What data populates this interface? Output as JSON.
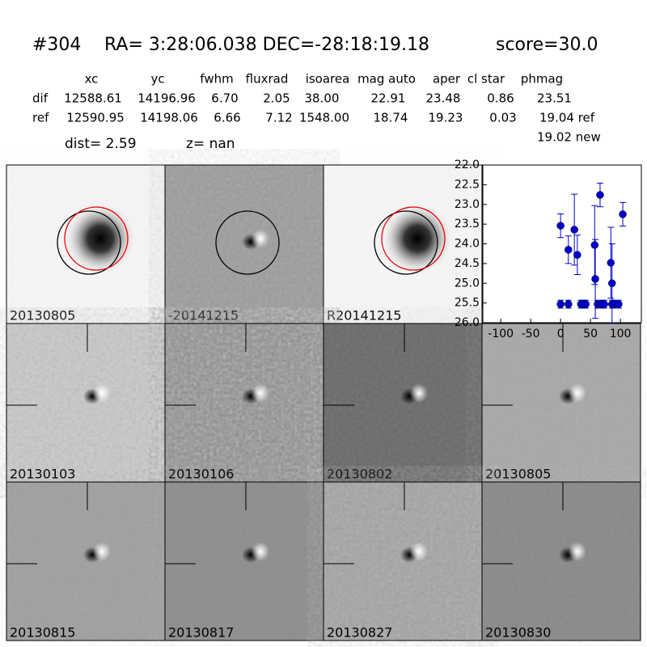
{
  "header": {
    "id": "#304",
    "coords": "RA= 3:28:06.038 DEC=-28:18:19.18",
    "score": "score=30.0"
  },
  "table": {
    "columns": [
      "xc",
      "yc",
      "fwhm",
      "fluxrad",
      "isoarea",
      "mag auto",
      "aper",
      "cl star",
      "phmag"
    ],
    "rows": [
      [
        "dif",
        "12588.61",
        "14196.96",
        "6.70",
        "2.05",
        "38.00",
        "22.91",
        "23.48",
        "0.86",
        "23.51"
      ],
      [
        "ref",
        "12590.95",
        "14198.06",
        "6.66",
        "7.12",
        "1548.00",
        "18.74",
        "19.23",
        "0.03",
        "19.04 ref"
      ]
    ],
    "extra": "19.02 new"
  },
  "dist": "dist=  2.59",
  "z": "z=   nan",
  "stamps": [
    {
      "label": "20130805"
    },
    {
      "label": "-20141215"
    },
    {
      "label": "R20141215"
    },
    {
      "label": "20130103"
    },
    {
      "label": "20130106"
    },
    {
      "label": "20130802"
    },
    {
      "label": "20130805",
      "color": "#ff0000"
    },
    {
      "label": "20130815"
    },
    {
      "label": "20130817"
    },
    {
      "label": "20130827"
    },
    {
      "label": "20130830"
    }
  ],
  "chart_data": {
    "type": "scatter",
    "color": "#0000cc",
    "x": [
      0,
      0,
      13,
      13,
      23,
      28,
      34,
      38,
      42,
      57,
      58,
      62,
      66,
      69,
      73,
      84,
      86,
      86,
      90,
      97,
      104
    ],
    "values": [
      23.54,
      25.53,
      25.53,
      24.15,
      23.64,
      24.28,
      25.53,
      25.53,
      25.53,
      24.03,
      24.89,
      25.53,
      22.76,
      25.53,
      25.53,
      24.48,
      25.0,
      25.53,
      25.53,
      25.53,
      23.25
    ],
    "errors": [
      0.3,
      0.1,
      0.1,
      0.35,
      0.9,
      0.5,
      0.1,
      0.1,
      0.1,
      1.0,
      1.0,
      0.1,
      0.3,
      0.1,
      0.1,
      0.9,
      1.0,
      0.1,
      0.1,
      0.1,
      0.3
    ],
    "xlim": [
      -130,
      135
    ],
    "xticks": [
      -100,
      -50,
      0,
      50,
      100
    ],
    "ylim": [
      26,
      22
    ],
    "yticks": [
      {
        "value": 22,
        "label": "22.0"
      },
      22.5,
      {
        "value": 23,
        "label": "23.0"
      },
      23.5,
      {
        "value": 24,
        "label": "24.0"
      },
      24.5,
      {
        "value": 25,
        "label": "25.0"
      },
      25.5,
      {
        "value": 26,
        "label": "26.0"
      }
    ]
  }
}
